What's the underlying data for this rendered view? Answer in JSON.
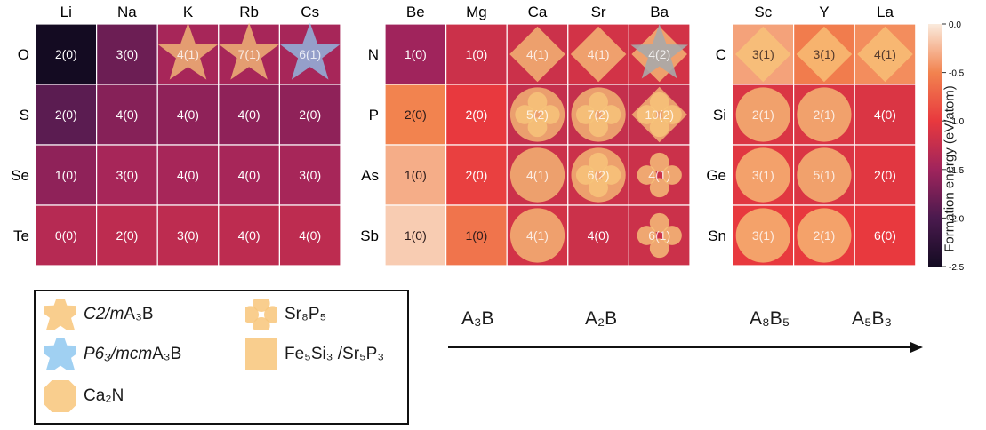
{
  "chart_data": {
    "type": "heatmap",
    "colorbar": {
      "label": "Formation energy (eV/atom)",
      "range": [
        -2.5,
        0.0
      ],
      "ticks": [
        "0.0",
        "-0.5",
        "-1.0",
        "-1.5",
        "-2.0",
        "-2.5"
      ],
      "tick_values": [
        0.0,
        -0.5,
        -1.0,
        -1.5,
        -2.0,
        -2.5
      ]
    },
    "panels": [
      {
        "columns": [
          "Li",
          "Na",
          "K",
          "Rb",
          "Cs"
        ],
        "rows": [
          "O",
          "S",
          "Se",
          "Te"
        ],
        "cells": [
          [
            {
              "label": "2(0)",
              "energy": -2.5,
              "marker": null
            },
            {
              "label": "3(0)",
              "energy": -1.8,
              "marker": null
            },
            {
              "label": "4(1)",
              "energy": -1.45,
              "marker": "star-c2m"
            },
            {
              "label": "7(1)",
              "energy": -1.45,
              "marker": "star-c2m"
            },
            {
              "label": "6(1)",
              "energy": -1.45,
              "marker": "star-p63mcm"
            }
          ],
          [
            {
              "label": "2(0)",
              "energy": -1.9,
              "marker": null
            },
            {
              "label": "4(0)",
              "energy": -1.65,
              "marker": null
            },
            {
              "label": "4(0)",
              "energy": -1.6,
              "marker": null
            },
            {
              "label": "4(0)",
              "energy": -1.6,
              "marker": null
            },
            {
              "label": "2(0)",
              "energy": -1.6,
              "marker": null
            }
          ],
          [
            {
              "label": "1(0)",
              "energy": -1.6,
              "marker": null
            },
            {
              "label": "3(0)",
              "energy": -1.45,
              "marker": null
            },
            {
              "label": "4(0)",
              "energy": -1.45,
              "marker": null
            },
            {
              "label": "4(0)",
              "energy": -1.45,
              "marker": null
            },
            {
              "label": "3(0)",
              "energy": -1.45,
              "marker": null
            }
          ],
          [
            {
              "label": "0(0)",
              "energy": -1.35,
              "marker": null
            },
            {
              "label": "2(0)",
              "energy": -1.3,
              "marker": null
            },
            {
              "label": "3(0)",
              "energy": -1.3,
              "marker": null
            },
            {
              "label": "4(0)",
              "energy": -1.3,
              "marker": null
            },
            {
              "label": "4(0)",
              "energy": -1.3,
              "marker": null
            }
          ]
        ]
      },
      {
        "columns": [
          "Be",
          "Mg",
          "Ca",
          "Sr",
          "Ba"
        ],
        "rows": [
          "N",
          "P",
          "As",
          "Sb"
        ],
        "cells": [
          [
            {
              "label": "1(0)",
              "energy": -1.5,
              "marker": null
            },
            {
              "label": "1(0)",
              "energy": -1.2,
              "marker": null
            },
            {
              "label": "4(1)",
              "energy": -1.2,
              "marker": "diamond"
            },
            {
              "label": "4(1)",
              "energy": -1.15,
              "marker": "diamond"
            },
            {
              "label": "4(2)",
              "energy": -1.15,
              "marker": "diamond-star"
            }
          ],
          [
            {
              "label": "2(0)",
              "energy": -0.5,
              "marker": null
            },
            {
              "label": "2(0)",
              "energy": -1.0,
              "marker": null
            },
            {
              "label": "5(2)",
              "energy": -1.25,
              "marker": "circle-clover"
            },
            {
              "label": "7(2)",
              "energy": -1.25,
              "marker": "circle-clover"
            },
            {
              "label": "10(2)",
              "energy": -1.25,
              "marker": "diamond-clover"
            }
          ],
          [
            {
              "label": "1(0)",
              "energy": -0.3,
              "marker": null
            },
            {
              "label": "2(0)",
              "energy": -0.95,
              "marker": null
            },
            {
              "label": "4(1)",
              "energy": -1.2,
              "marker": "circle"
            },
            {
              "label": "6(2)",
              "energy": -1.2,
              "marker": "circle-clover"
            },
            {
              "label": "4(1)",
              "energy": -1.2,
              "marker": "clover"
            }
          ],
          [
            {
              "label": "1(0)",
              "energy": -0.15,
              "marker": null
            },
            {
              "label": "1(0)",
              "energy": -0.6,
              "marker": null
            },
            {
              "label": "4(1)",
              "energy": -1.15,
              "marker": "circle"
            },
            {
              "label": "4(0)",
              "energy": -1.2,
              "marker": null
            },
            {
              "label": "6(1)",
              "energy": -1.2,
              "marker": "clover"
            }
          ]
        ]
      },
      {
        "columns": [
          "Sc",
          "Y",
          "La"
        ],
        "rows": [
          "C",
          "Si",
          "Ge",
          "Sn"
        ],
        "cells": [
          [
            {
              "label": "3(1)",
              "energy": -0.35,
              "marker": "diamond"
            },
            {
              "label": "3(1)",
              "energy": -0.55,
              "marker": "diamond"
            },
            {
              "label": "4(1)",
              "energy": -0.45,
              "marker": "diamond"
            }
          ],
          [
            {
              "label": "2(1)",
              "energy": -1.1,
              "marker": "circle"
            },
            {
              "label": "2(1)",
              "energy": -1.1,
              "marker": "circle"
            },
            {
              "label": "4(0)",
              "energy": -1.1,
              "marker": null
            }
          ],
          [
            {
              "label": "3(1)",
              "energy": -1.05,
              "marker": "circle"
            },
            {
              "label": "5(1)",
              "energy": -1.1,
              "marker": "circle"
            },
            {
              "label": "2(0)",
              "energy": -1.05,
              "marker": null
            }
          ],
          [
            {
              "label": "3(1)",
              "energy": -1.0,
              "marker": "circle"
            },
            {
              "label": "2(1)",
              "energy": -1.0,
              "marker": "circle"
            },
            {
              "label": "6(0)",
              "energy": -1.0,
              "marker": null
            }
          ]
        ]
      }
    ],
    "marker_colors": {
      "orange": "#f8c67a",
      "blue": "#8fc8f0",
      "gray": "#a8a8a8"
    }
  },
  "legend": {
    "items": [
      {
        "marker": "star-c2m",
        "italic": "C2/m",
        "rest": " A₃B"
      },
      {
        "marker": "star-p63mcm",
        "italic": "P6₃/mcm",
        "rest": " A₃B"
      },
      {
        "marker": "diamond",
        "italic": "",
        "rest": "Ca₂N"
      },
      {
        "marker": "clover",
        "italic": "",
        "rest": "Sr₈P₅"
      },
      {
        "marker": "circle",
        "italic": "",
        "rest": "Fe₅Si₃ /Sr₅P₃"
      }
    ]
  },
  "trend": {
    "labels": [
      "A₃B",
      "A₂B",
      "A₈B₅",
      "A₅B₃"
    ]
  }
}
